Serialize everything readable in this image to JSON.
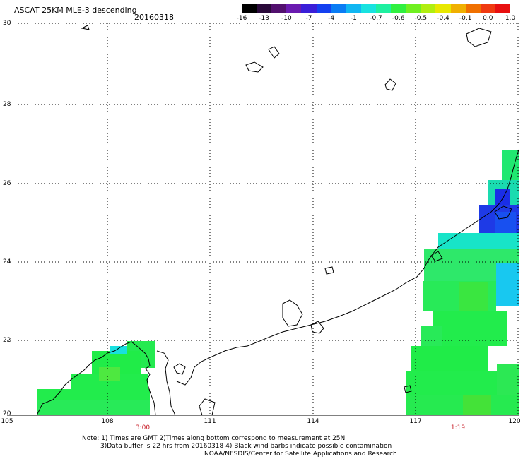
{
  "header": {
    "title": "ASCAT 25KM MLE-3 descending",
    "date": "20160318"
  },
  "colorbar": {
    "labels": [
      "-16",
      "-13",
      "-10",
      "-7",
      "-4",
      "-1",
      "-0.7",
      "-0.6",
      "-0.5",
      "-0.4",
      "-0.1",
      "0.0",
      "1.0"
    ],
    "colors": [
      "#000000",
      "#2a0a3a",
      "#52106e",
      "#6a1ab0",
      "#3a1ed8",
      "#1440f0",
      "#0a7cf4",
      "#10b6f2",
      "#18e2e0",
      "#1ef0a0",
      "#30f040",
      "#70f020",
      "#b0ee10",
      "#e8e800",
      "#f0b000",
      "#f07000",
      "#f03a10",
      "#e81010"
    ]
  },
  "axes": {
    "lat_labels": [
      "30",
      "28",
      "26",
      "24",
      "22",
      "20"
    ],
    "lon_labels": [
      "105",
      "108",
      "111",
      "114",
      "117",
      "120"
    ]
  },
  "pass_times": [
    "3:00",
    "1:19"
  ],
  "notes": {
    "line1": "Note: 1) Times are GMT 2)Times along bottom correspond to measurement at 25N",
    "line2": "3)Data buffer is 22 hrs from 20160318 4) Black wind barbs indicate possible contamination",
    "line3": "NOAA/NESDIS/Center for Satellite Applications and Research"
  }
}
